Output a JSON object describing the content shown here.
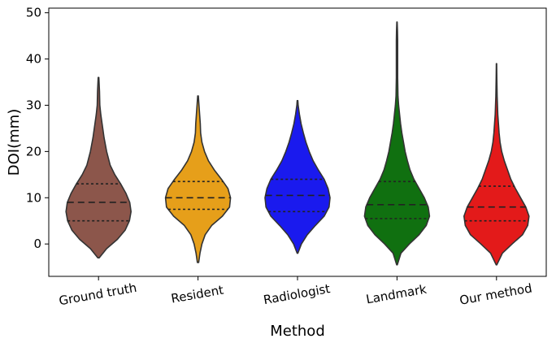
{
  "chart_data": {
    "type": "violin",
    "title": "",
    "xlabel": "Method",
    "ylabel": "DOI(mm)",
    "ylim": [
      -7,
      51
    ],
    "yticks": [
      0,
      10,
      20,
      30,
      40,
      50
    ],
    "grid": false,
    "legend": "none",
    "series": [
      {
        "category": "Ground truth",
        "color": "#8c564b",
        "min": -3,
        "max": 36,
        "q1": 5,
        "median": 9,
        "q3": 13,
        "density": [
          [
            -3,
            0.02
          ],
          [
            -1,
            0.25
          ],
          [
            1,
            0.58
          ],
          [
            3,
            0.82
          ],
          [
            5,
            0.95
          ],
          [
            7,
            1.0
          ],
          [
            9,
            0.96
          ],
          [
            11,
            0.84
          ],
          [
            13,
            0.68
          ],
          [
            15,
            0.5
          ],
          [
            17,
            0.36
          ],
          [
            20,
            0.25
          ],
          [
            23,
            0.17
          ],
          [
            26,
            0.11
          ],
          [
            28,
            0.07
          ],
          [
            30,
            0.04
          ],
          [
            33,
            0.03
          ],
          [
            36,
            0.01
          ]
        ]
      },
      {
        "category": "Resident",
        "color": "#e69f1a",
        "min": -4,
        "max": 32,
        "q1": 7.5,
        "median": 10,
        "q3": 13.5,
        "density": [
          [
            -4,
            0.02
          ],
          [
            -2,
            0.06
          ],
          [
            0,
            0.12
          ],
          [
            2,
            0.22
          ],
          [
            4,
            0.42
          ],
          [
            6,
            0.75
          ],
          [
            8,
            0.97
          ],
          [
            10,
            1.0
          ],
          [
            12,
            0.92
          ],
          [
            14,
            0.72
          ],
          [
            16,
            0.5
          ],
          [
            18,
            0.32
          ],
          [
            20,
            0.2
          ],
          [
            22,
            0.12
          ],
          [
            24,
            0.08
          ],
          [
            26,
            0.07
          ],
          [
            28,
            0.05
          ],
          [
            30,
            0.03
          ],
          [
            32,
            0.01
          ]
        ]
      },
      {
        "category": "Radiologist",
        "color": "#1a1aee",
        "min": -2,
        "max": 31,
        "q1": 7,
        "median": 10.5,
        "q3": 14,
        "density": [
          [
            -2,
            0.01
          ],
          [
            0,
            0.12
          ],
          [
            2,
            0.3
          ],
          [
            4,
            0.55
          ],
          [
            6,
            0.82
          ],
          [
            8,
            0.97
          ],
          [
            10,
            1.0
          ],
          [
            12,
            0.94
          ],
          [
            14,
            0.82
          ],
          [
            16,
            0.64
          ],
          [
            18,
            0.48
          ],
          [
            20,
            0.36
          ],
          [
            22,
            0.26
          ],
          [
            24,
            0.18
          ],
          [
            26,
            0.11
          ],
          [
            28,
            0.06
          ],
          [
            30,
            0.02
          ],
          [
            31,
            0.01
          ]
        ]
      },
      {
        "category": "Landmark",
        "color": "#107010",
        "min": -4.5,
        "max": 48,
        "q1": 5.5,
        "median": 8.5,
        "q3": 13.5,
        "density": [
          [
            -4.5,
            0.01
          ],
          [
            -2,
            0.12
          ],
          [
            0,
            0.38
          ],
          [
            2,
            0.68
          ],
          [
            4,
            0.9
          ],
          [
            6,
            1.0
          ],
          [
            8,
            0.96
          ],
          [
            10,
            0.84
          ],
          [
            12,
            0.68
          ],
          [
            14,
            0.52
          ],
          [
            16,
            0.4
          ],
          [
            18,
            0.32
          ],
          [
            20,
            0.25
          ],
          [
            22,
            0.2
          ],
          [
            24,
            0.15
          ],
          [
            26,
            0.11
          ],
          [
            28,
            0.08
          ],
          [
            30,
            0.05
          ],
          [
            32,
            0.03
          ],
          [
            36,
            0.02
          ],
          [
            40,
            0.02
          ],
          [
            44,
            0.02
          ],
          [
            46,
            0.015
          ],
          [
            48,
            0.005
          ]
        ]
      },
      {
        "category": "Our method",
        "color": "#e31a1a",
        "min": -4.5,
        "max": 39,
        "q1": 5,
        "median": 8,
        "q3": 12.5,
        "density": [
          [
            -4.5,
            0.01
          ],
          [
            -2,
            0.18
          ],
          [
            0,
            0.48
          ],
          [
            2,
            0.8
          ],
          [
            4,
            0.96
          ],
          [
            6,
            1.0
          ],
          [
            8,
            0.9
          ],
          [
            10,
            0.74
          ],
          [
            12,
            0.58
          ],
          [
            14,
            0.44
          ],
          [
            16,
            0.34
          ],
          [
            18,
            0.24
          ],
          [
            20,
            0.16
          ],
          [
            22,
            0.11
          ],
          [
            24,
            0.08
          ],
          [
            26,
            0.06
          ],
          [
            28,
            0.04
          ],
          [
            30,
            0.03
          ],
          [
            32,
            0.02
          ],
          [
            34,
            0.015
          ],
          [
            36,
            0.01
          ],
          [
            39,
            0.005
          ]
        ]
      }
    ]
  }
}
